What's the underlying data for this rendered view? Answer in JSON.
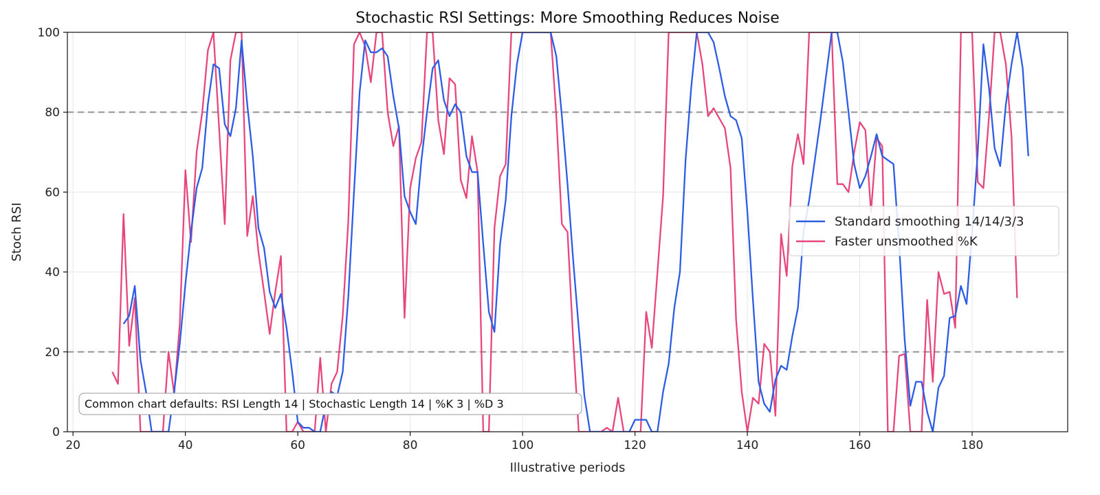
{
  "chart_data": {
    "type": "line",
    "title": "Stochastic RSI Settings: More Smoothing Reduces Noise",
    "xlabel": "Illustrative periods",
    "ylabel": "Stoch RSI",
    "xlim": [
      19,
      197
    ],
    "ylim": [
      0,
      100
    ],
    "xticks": [
      20,
      40,
      60,
      80,
      100,
      120,
      140,
      160,
      180
    ],
    "yticks": [
      0,
      20,
      40,
      60,
      80,
      100
    ],
    "grid": true,
    "legend_placement": "center-right",
    "reference_lines": [
      20,
      80
    ],
    "annotation": "Common chart defaults: RSI Length 14 | Stochastic Length 14 | %K 3 | %D 3",
    "colors": {
      "standard": "#2b5ce6",
      "faster": "#e8457c",
      "reference": "#999999",
      "grid": "#e6e6e6"
    },
    "series": [
      {
        "name": "Standard smoothing 14/14/3/3",
        "x_start": 29,
        "values": [
          27,
          29,
          36.5,
          18,
          10,
          0,
          0,
          0,
          0,
          10,
          22,
          37,
          50,
          61,
          66,
          82,
          92,
          91,
          77,
          74,
          81,
          98,
          82,
          69,
          51,
          46,
          35,
          31,
          34.5,
          26,
          15,
          2.5,
          1,
          1,
          0,
          0,
          7,
          10,
          9,
          15,
          34,
          60,
          85,
          98,
          95,
          95,
          96,
          94,
          84,
          76,
          59,
          55,
          52,
          68,
          80,
          91,
          93,
          83,
          79,
          82,
          80,
          69,
          65,
          65,
          47,
          30,
          25,
          47,
          58,
          79,
          92,
          100,
          100,
          100,
          100,
          100,
          100,
          94,
          79,
          62,
          43,
          26,
          9,
          0,
          0,
          0,
          0,
          0,
          0,
          0,
          0,
          3,
          3,
          3,
          0,
          0,
          10,
          17,
          31,
          40,
          68,
          86,
          100,
          100,
          100,
          97.5,
          91,
          84,
          79,
          78,
          73.5,
          55,
          33,
          12.5,
          7,
          5,
          13,
          16.5,
          15.5,
          24,
          31,
          50,
          58,
          68,
          78,
          89,
          100,
          100,
          92.5,
          80,
          67,
          61,
          64,
          69,
          74.5,
          69,
          68,
          67,
          47,
          23,
          6.5,
          12.5,
          12.5,
          5,
          0,
          11,
          14,
          28.5,
          29,
          36.5,
          32,
          50,
          70,
          97,
          86,
          71,
          66.5,
          82,
          92,
          100,
          91,
          69
        ]
      },
      {
        "name": "Faster unsmoothed %K",
        "x_start": 27,
        "values": [
          15,
          12,
          54.5,
          21.5,
          33.5,
          0,
          0,
          0,
          0,
          0,
          20,
          9.5,
          27,
          65.5,
          47.5,
          70,
          80,
          95.5,
          100,
          76,
          52,
          93,
          100,
          100,
          49,
          59,
          45,
          35,
          24.5,
          35,
          44,
          0,
          0,
          2.5,
          0,
          0,
          0,
          18.5,
          0,
          12,
          15,
          29,
          53,
          97,
          100,
          96.5,
          87.5,
          100,
          100,
          80,
          71.5,
          76.5,
          28.5,
          61,
          68.5,
          72.5,
          100,
          100,
          78,
          69.5,
          88.5,
          87,
          63,
          58.5,
          74,
          65,
          0,
          0,
          51,
          64,
          67,
          100,
          100,
          100,
          100,
          100,
          100,
          100,
          100,
          79,
          52,
          50,
          23,
          0,
          0,
          0,
          0,
          0,
          1,
          0,
          8.5,
          0,
          0,
          0,
          0,
          30,
          21,
          40,
          59,
          100,
          100,
          100,
          100,
          100,
          100,
          92,
          79,
          81,
          78.5,
          76,
          66,
          28,
          10,
          0,
          8.5,
          7,
          22,
          20,
          4,
          49.5,
          39,
          66.5,
          74.5,
          67,
          100,
          100,
          100,
          100,
          100,
          62,
          62,
          60,
          70,
          77.5,
          75.5,
          55,
          73.5,
          71.5,
          0,
          0,
          19,
          19.5,
          0,
          0,
          0,
          33,
          12.5,
          40,
          34.5,
          35,
          26,
          100,
          100,
          100,
          62.5,
          61,
          79,
          100,
          100,
          92,
          74,
          33.5
        ]
      }
    ]
  }
}
